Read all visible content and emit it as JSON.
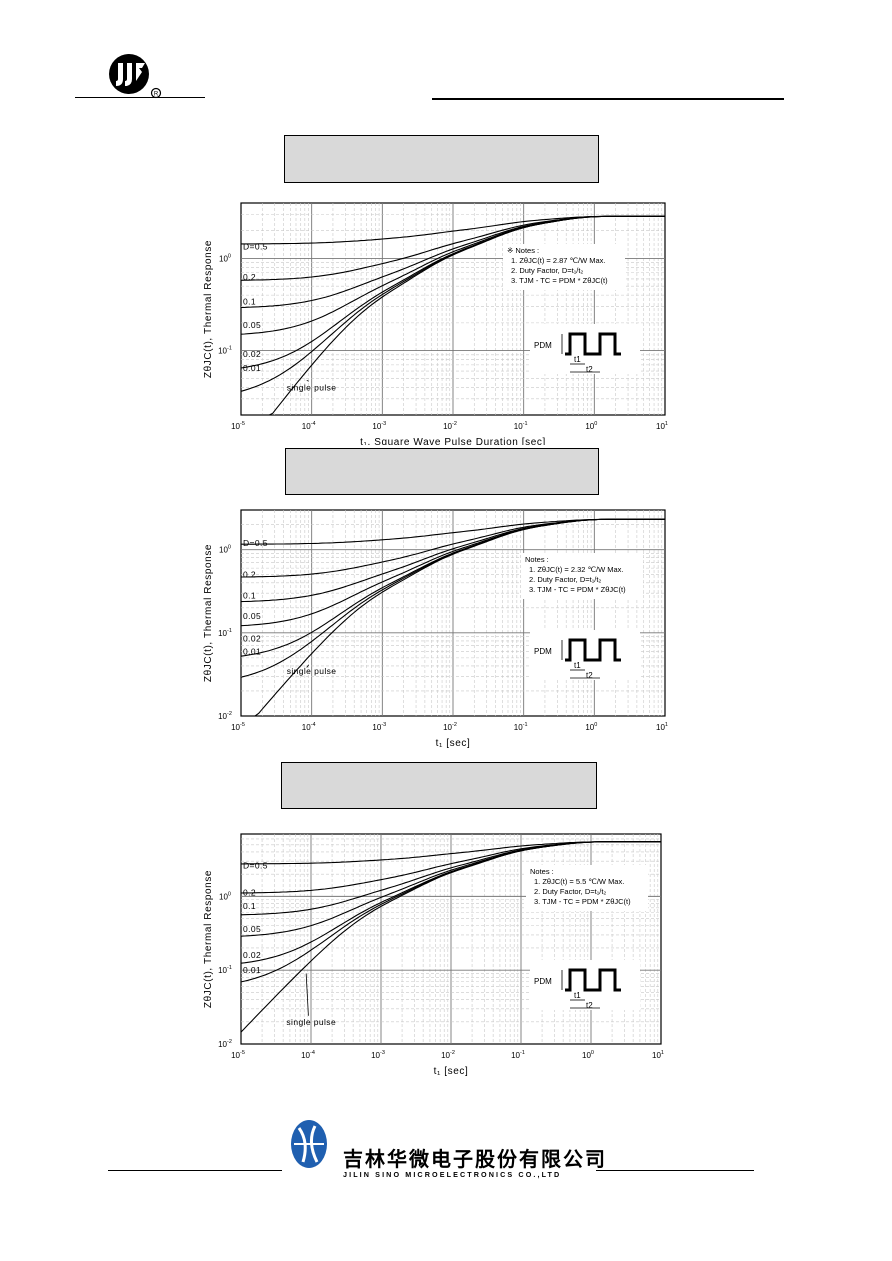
{
  "header": {
    "logo_icon": "jjm-logo-icon",
    "registered_mark": "R"
  },
  "chart_data": [
    {
      "type": "line",
      "title": "",
      "xlabel": "t₁, Square Wave Pulse Duration [sec]",
      "ylabel": "ZθJC(t), Thermal Response",
      "xscale": "log",
      "yscale": "log",
      "xlim": [
        1e-05,
        10
      ],
      "ylim": [
        0.02,
        4
      ],
      "x_ticks": [
        {
          "base": "10",
          "exp": "-5"
        },
        {
          "base": "10",
          "exp": "-4"
        },
        {
          "base": "10",
          "exp": "-3"
        },
        {
          "base": "10",
          "exp": "-2"
        },
        {
          "base": "10",
          "exp": "-1"
        },
        {
          "base": "10",
          "exp": "0"
        },
        {
          "base": "10",
          "exp": "1"
        }
      ],
      "y_ticks": [
        {
          "base": "10",
          "exp": "-1"
        },
        {
          "base": "10",
          "exp": "0"
        }
      ],
      "rth_max": 2.87,
      "grid": true,
      "series": [
        {
          "name": "D=0.5",
          "D": 0.5,
          "label_y": 1.35
        },
        {
          "name": "0.2",
          "D": 0.2,
          "label_y": 0.63
        },
        {
          "name": "0.1",
          "D": 0.1,
          "label_y": 0.34
        },
        {
          "name": "0.05",
          "D": 0.05,
          "label_y": 0.19
        },
        {
          "name": "0.02",
          "D": 0.02,
          "label_y": 0.092
        },
        {
          "name": "0.01",
          "D": 0.01,
          "label_y": 0.065
        },
        {
          "name": "single pulse",
          "D": 0,
          "label_y": 0.04
        }
      ],
      "notes": {
        "head": "※ Notes :",
        "n1": "1. ZθJC(t) = 2.87 ℃/W Max.",
        "n2": "2. Duty Factor, D=t₁/t₂",
        "n3": "3. TJM - TC = PDM * ZθJC(t)"
      },
      "pulse_labels": {
        "pdm": "PDM",
        "t1": "t1",
        "t2": "t2"
      }
    },
    {
      "type": "line",
      "title": "",
      "xlabel": "t₁ [sec]",
      "ylabel": "ZθJC(t), Thermal Response",
      "xscale": "log",
      "yscale": "log",
      "xlim": [
        1e-05,
        10
      ],
      "ylim": [
        0.01,
        3
      ],
      "x_ticks": [
        {
          "base": "10",
          "exp": "-5"
        },
        {
          "base": "10",
          "exp": "-4"
        },
        {
          "base": "10",
          "exp": "-3"
        },
        {
          "base": "10",
          "exp": "-2"
        },
        {
          "base": "10",
          "exp": "-1"
        },
        {
          "base": "10",
          "exp": "0"
        },
        {
          "base": "10",
          "exp": "1"
        }
      ],
      "y_ticks": [
        {
          "base": "10",
          "exp": "-2"
        },
        {
          "base": "10",
          "exp": "-1"
        },
        {
          "base": "10",
          "exp": "0"
        }
      ],
      "rth_max": 2.32,
      "grid": true,
      "series": [
        {
          "name": "D=0.5",
          "D": 0.5,
          "label_y": 1.2
        },
        {
          "name": "0.2",
          "D": 0.2,
          "label_y": 0.5
        },
        {
          "name": "0.1",
          "D": 0.1,
          "label_y": 0.28
        },
        {
          "name": "0.05",
          "D": 0.05,
          "label_y": 0.16
        },
        {
          "name": "0.02",
          "D": 0.02,
          "label_y": 0.085
        },
        {
          "name": "0.01",
          "D": 0.01,
          "label_y": 0.06
        },
        {
          "name": "single pulse",
          "D": 0,
          "label_y": 0.035
        }
      ],
      "notes": {
        "head": "Notes :",
        "n1": "1. ZθJC(t) = 2.32 ℃/W Max.",
        "n2": "2. Duty Factor, D=t₁/t₂",
        "n3": "3. TJM - TC = PDM * ZθJC(t)"
      },
      "pulse_labels": {
        "pdm": "PDM",
        "t1": "t1",
        "t2": "t2"
      }
    },
    {
      "type": "line",
      "title": "",
      "xlabel": "t₁ [sec]",
      "ylabel": "ZθJC(t), Thermal Response",
      "xscale": "log",
      "yscale": "log",
      "xlim": [
        1e-05,
        10
      ],
      "ylim": [
        0.01,
        7
      ],
      "x_ticks": [
        {
          "base": "10",
          "exp": "-5"
        },
        {
          "base": "10",
          "exp": "-4"
        },
        {
          "base": "10",
          "exp": "-3"
        },
        {
          "base": "10",
          "exp": "-2"
        },
        {
          "base": "10",
          "exp": "-1"
        },
        {
          "base": "10",
          "exp": "0"
        },
        {
          "base": "10",
          "exp": "1"
        }
      ],
      "y_ticks": [
        {
          "base": "10",
          "exp": "-2"
        },
        {
          "base": "10",
          "exp": "-1"
        },
        {
          "base": "10",
          "exp": "0"
        }
      ],
      "rth_max": 5.5,
      "grid": true,
      "series": [
        {
          "name": "D=0.5",
          "D": 0.5,
          "label_y": 2.6
        },
        {
          "name": "0.2",
          "D": 0.2,
          "label_y": 1.12
        },
        {
          "name": "0.1",
          "D": 0.1,
          "label_y": 0.74
        },
        {
          "name": "0.05",
          "D": 0.05,
          "label_y": 0.36
        },
        {
          "name": "0.02",
          "D": 0.02,
          "label_y": 0.16
        },
        {
          "name": "0.01",
          "D": 0.01,
          "label_y": 0.1
        },
        {
          "name": "single pulse",
          "D": 0,
          "label_y": 0.02
        }
      ],
      "notes": {
        "head": "Notes :",
        "n1": "1. ZθJC(t) = 5.5 ℃/W Max.",
        "n2": "2. Duty Factor, D=t₁/t₂",
        "n3": "3. TJM - TC = PDM * ZθJC(t)"
      },
      "pulse_labels": {
        "pdm": "PDM",
        "t1": "t1",
        "t2": "t2"
      }
    }
  ],
  "footer": {
    "company_cn": "吉林华微电子股份有限公司",
    "company_en": "JILIN  SINO  MICROELECTRONICS  CO.,LTD",
    "logo_icon": "jilin-sino-logo-icon"
  },
  "colors": {
    "caption_fill": "#d9d9d9",
    "footer_logo": "#1f5fb0",
    "ink": "#000000"
  }
}
